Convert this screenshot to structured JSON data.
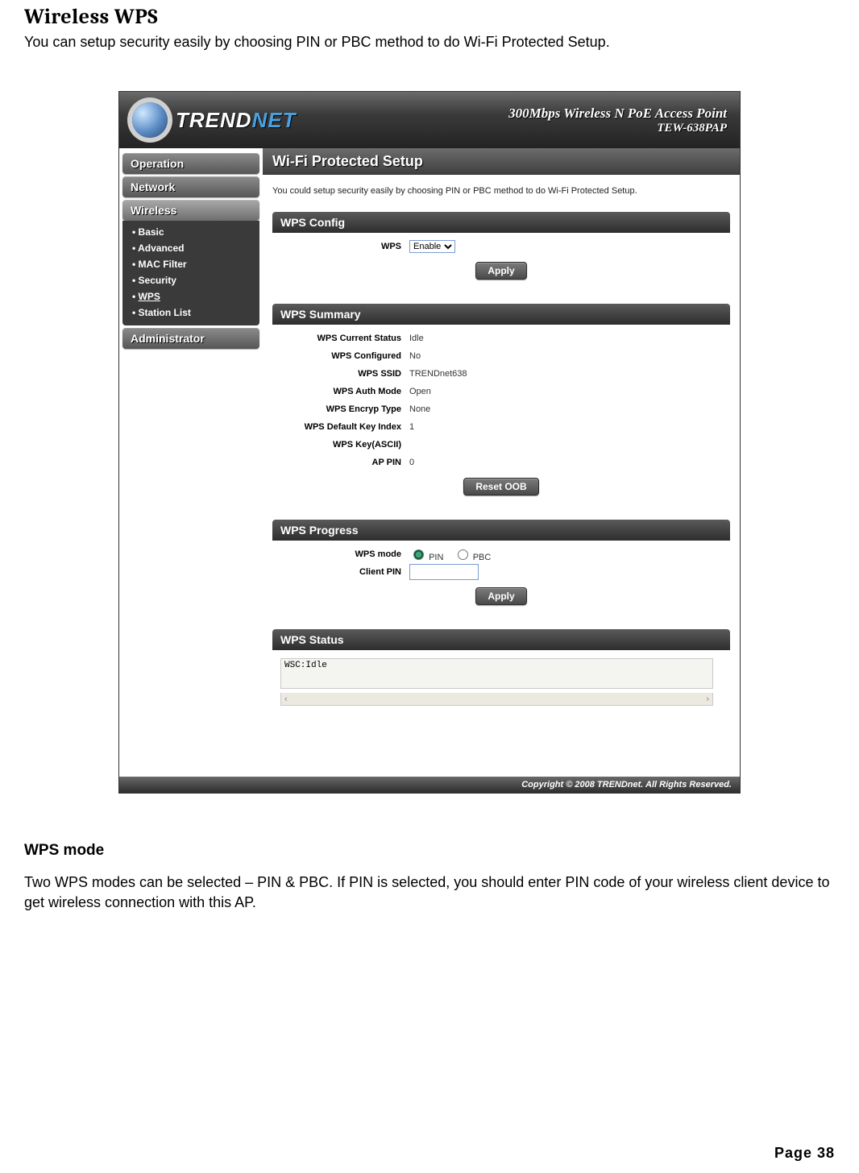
{
  "doc": {
    "title": "Wireless WPS",
    "intro": "You can setup security easily by choosing PIN or PBC method to do Wi-Fi Protected Setup.",
    "sub_heading": "WPS mode",
    "sub_text": "Two WPS modes can be selected – PIN & PBC. If PIN is selected, you should enter PIN code of your wireless client device to get wireless connection with this AP.",
    "page_number": "Page  38"
  },
  "brand": {
    "name_part1": "TREND",
    "name_part2": "NET",
    "product_line1": "300Mbps Wireless N PoE Access Point",
    "product_line2": "TEW-638PAP"
  },
  "nav": {
    "items": [
      "Operation",
      "Network",
      "Wireless",
      "Administrator"
    ],
    "active_index": 2,
    "sub_items": [
      "Basic",
      "Advanced",
      "MAC Filter",
      "Security",
      "WPS",
      "Station List"
    ],
    "sub_active_index": 4
  },
  "content": {
    "page_title": "Wi-Fi Protected Setup",
    "intro": "You could setup security easily by choosing PIN or PBC method to do Wi-Fi Protected Setup."
  },
  "wps_config": {
    "title": "WPS Config",
    "field_label": "WPS",
    "select_value": "Enable",
    "apply_label": "Apply"
  },
  "wps_summary": {
    "title": "WPS Summary",
    "rows": [
      {
        "label": "WPS Current Status",
        "value": "Idle"
      },
      {
        "label": "WPS Configured",
        "value": "No"
      },
      {
        "label": "WPS SSID",
        "value": "TRENDnet638"
      },
      {
        "label": "WPS Auth Mode",
        "value": "Open"
      },
      {
        "label": "WPS Encryp Type",
        "value": "None"
      },
      {
        "label": "WPS Default Key Index",
        "value": "1"
      },
      {
        "label": "WPS Key(ASCII)",
        "value": ""
      },
      {
        "label": "AP PIN",
        "value": "0"
      }
    ],
    "reset_label": "Reset OOB"
  },
  "wps_progress": {
    "title": "WPS Progress",
    "mode_label": "WPS mode",
    "radio_pin": "PIN",
    "radio_pbc": "PBC",
    "client_pin_label": "Client PIN",
    "client_pin_value": "",
    "apply_label": "Apply"
  },
  "wps_status": {
    "title": "WPS Status",
    "text": "WSC:Idle"
  },
  "footer": {
    "text": "Copyright © 2008 TRENDnet. All Rights Reserved."
  }
}
